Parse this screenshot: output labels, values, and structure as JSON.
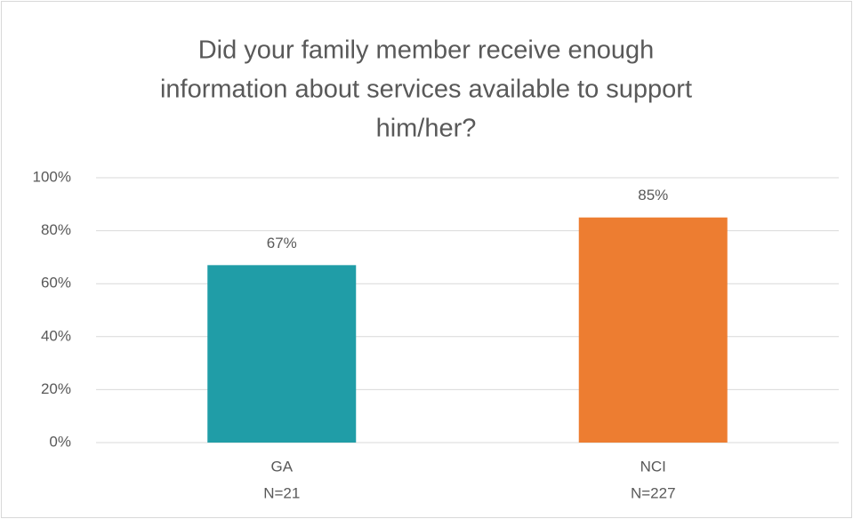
{
  "chart_data": {
    "type": "bar",
    "title": [
      "Did your family member receive enough",
      "information about services available to support",
      "him/her?"
    ],
    "categories": [
      "GA",
      "NCI"
    ],
    "category_notes": [
      "N=21",
      "N=227"
    ],
    "values": [
      67,
      85
    ],
    "value_labels": [
      "67%",
      "85%"
    ],
    "colors": [
      "#209DA7",
      "#ED7D31"
    ],
    "ylim": [
      0,
      100
    ],
    "yticks": [
      {
        "value": 0,
        "label": "0%"
      },
      {
        "value": 20,
        "label": "20%"
      },
      {
        "value": 40,
        "label": "40%"
      },
      {
        "value": 60,
        "label": "60%"
      },
      {
        "value": 80,
        "label": "80%"
      },
      {
        "value": 100,
        "label": "100%"
      }
    ],
    "grid": true
  }
}
